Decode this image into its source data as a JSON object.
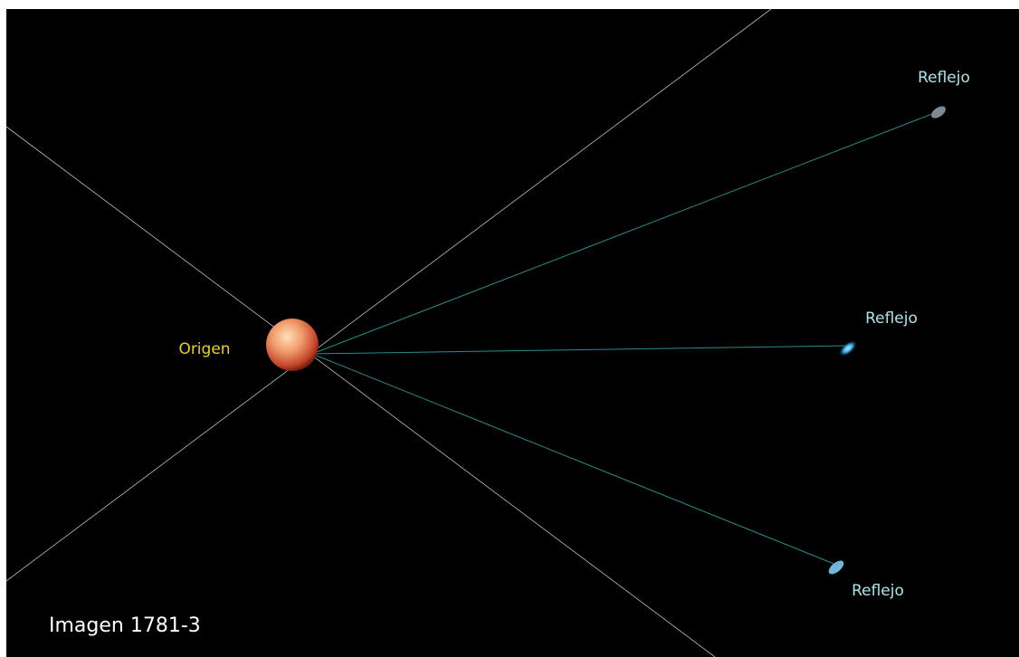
{
  "origin": {
    "label": "Origen"
  },
  "reflections": [
    {
      "label": "Reflejo"
    },
    {
      "label": "Reflejo"
    },
    {
      "label": "Reflejo"
    }
  ],
  "caption": "Imagen 1781-3"
}
